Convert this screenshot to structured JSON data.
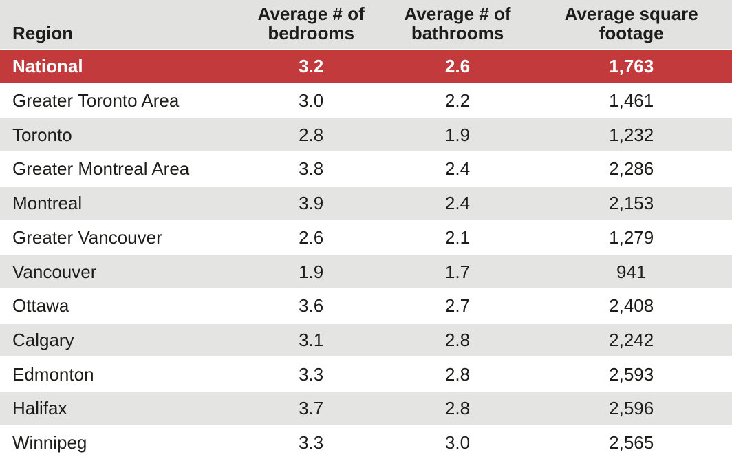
{
  "colors": {
    "highlight": "#c23a3c",
    "header_bg": "#e2e2e0",
    "stripe_bg": "#e4e4e2",
    "text": "#1d1d1b",
    "highlight_text": "#ffffff"
  },
  "chart_data": {
    "type": "table",
    "title": "",
    "columns": [
      "Region",
      "Average # of bedrooms",
      "Average # of bathrooms",
      "Average square footage"
    ],
    "highlighted_row": "National",
    "rows": [
      {
        "region": "National",
        "bedrooms": "3.2",
        "bathrooms": "2.6",
        "square_footage": "1,763",
        "highlighted": true
      },
      {
        "region": "Greater Toronto Area",
        "bedrooms": "3.0",
        "bathrooms": "2.2",
        "square_footage": "1,461",
        "highlighted": false
      },
      {
        "region": "Toronto",
        "bedrooms": "2.8",
        "bathrooms": "1.9",
        "square_footage": "1,232",
        "highlighted": false
      },
      {
        "region": "Greater Montreal Area",
        "bedrooms": "3.8",
        "bathrooms": "2.4",
        "square_footage": "2,286",
        "highlighted": false
      },
      {
        "region": "Montreal",
        "bedrooms": "3.9",
        "bathrooms": "2.4",
        "square_footage": "2,153",
        "highlighted": false
      },
      {
        "region": "Greater Vancouver",
        "bedrooms": "2.6",
        "bathrooms": "2.1",
        "square_footage": "1,279",
        "highlighted": false
      },
      {
        "region": "Vancouver",
        "bedrooms": "1.9",
        "bathrooms": "1.7",
        "square_footage": "941",
        "highlighted": false
      },
      {
        "region": "Ottawa",
        "bedrooms": "3.6",
        "bathrooms": "2.7",
        "square_footage": "2,408",
        "highlighted": false
      },
      {
        "region": "Calgary",
        "bedrooms": "3.1",
        "bathrooms": "2.8",
        "square_footage": "2,242",
        "highlighted": false
      },
      {
        "region": "Edmonton",
        "bedrooms": "3.3",
        "bathrooms": "2.8",
        "square_footage": "2,593",
        "highlighted": false
      },
      {
        "region": "Halifax",
        "bedrooms": "3.7",
        "bathrooms": "2.8",
        "square_footage": "2,596",
        "highlighted": false
      },
      {
        "region": "Winnipeg",
        "bedrooms": "3.3",
        "bathrooms": "3.0",
        "square_footage": "2,565",
        "highlighted": false
      }
    ]
  }
}
